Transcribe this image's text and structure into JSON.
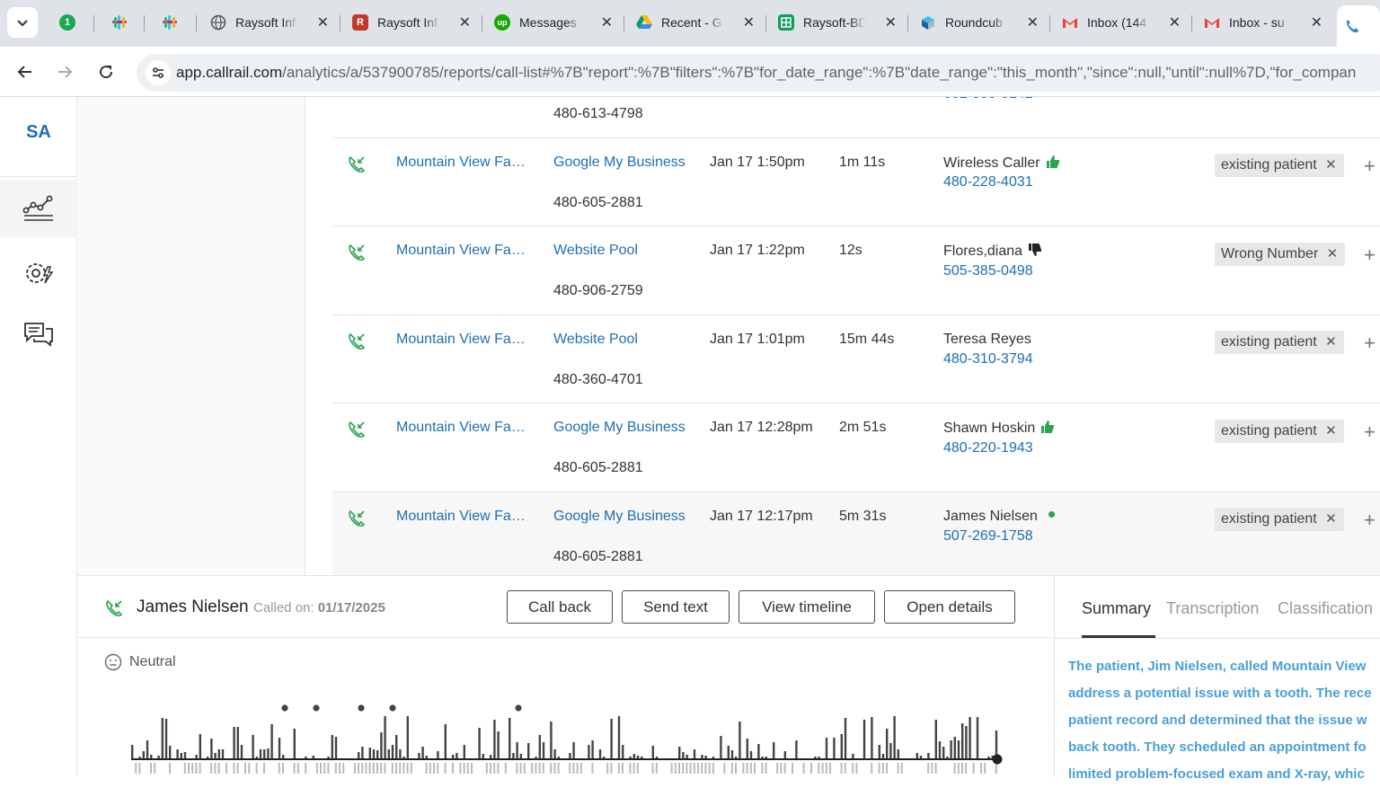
{
  "browser": {
    "tabs": [
      {
        "label": "",
        "favicon": "1password-icon",
        "closable": false
      },
      {
        "label": "",
        "favicon": "slack-icon",
        "closable": false
      },
      {
        "label": "",
        "favicon": "slack-icon",
        "closable": false
      },
      {
        "label": "Raysoft Inf",
        "favicon": "globe-icon",
        "closable": true
      },
      {
        "label": "Raysoft Inf",
        "favicon": "raysoft-icon",
        "closable": true
      },
      {
        "label": "Messages",
        "favicon": "upwork-icon",
        "closable": true
      },
      {
        "label": "Recent - G",
        "favicon": "google-drive-icon",
        "closable": true
      },
      {
        "label": "Raysoft-BD",
        "favicon": "google-sheets-icon",
        "closable": true
      },
      {
        "label": "Roundcub",
        "favicon": "roundcube-icon",
        "closable": true
      },
      {
        "label": "Inbox (144",
        "favicon": "gmail-icon",
        "closable": true
      },
      {
        "label": "Inbox - su",
        "favicon": "gmail-icon",
        "closable": true
      },
      {
        "label": "",
        "favicon": "callrail-icon",
        "closable": false
      }
    ],
    "url_host": "app.callrail.com",
    "url_path": "/analytics/a/537900785/reports/call-list#%7B\"report\":%7B\"filters\":%7B\"for_date_range\":%7B\"date_range\":\"this_month\",\"since\":null,\"until\":null%7D,\"for_compan"
  },
  "app": {
    "logo": "SA",
    "nav": [
      "analytics-icon",
      "settings-automation-icon",
      "conversations-icon"
    ]
  },
  "calls": {
    "partial_top_number": "480-613-4798",
    "rows": [
      {
        "company": "Mountain View Fa…",
        "source": "Google My Business",
        "tracking": "480-605-2881",
        "time": "Jan 17 1:50pm",
        "duration": "1m 11s",
        "caller": "Wireless Caller",
        "phone": "480-228-4031",
        "indicator": "thumbs-up",
        "tag": "existing patient"
      },
      {
        "company": "Mountain View Fa…",
        "source": "Website Pool",
        "tracking": "480-906-2759",
        "time": "Jan 17 1:22pm",
        "duration": "12s",
        "caller": "Flores,diana",
        "phone": "505-385-0498",
        "indicator": "thumbs-down",
        "tag": "Wrong Number"
      },
      {
        "company": "Mountain View Fa…",
        "source": "Website Pool",
        "tracking": "480-360-4701",
        "time": "Jan 17 1:01pm",
        "duration": "15m 44s",
        "caller": "Teresa Reyes",
        "phone": "480-310-3794",
        "indicator": "none",
        "tag": "existing patient"
      },
      {
        "company": "Mountain View Fa…",
        "source": "Google My Business",
        "tracking": "480-605-2881",
        "time": "Jan 17 12:28pm",
        "duration": "2m 51s",
        "caller": "Shawn Hoskin",
        "phone": "480-220-1943",
        "indicator": "thumbs-up",
        "tag": "existing patient"
      },
      {
        "company": "Mountain View Fa…",
        "source": "Google My Business",
        "tracking": "480-605-2881",
        "time": "Jan 17 12:17pm",
        "duration": "5m 31s",
        "caller": "James Nielsen",
        "phone": "507-269-1758",
        "indicator": "live-dot",
        "tag": "existing patient"
      }
    ]
  },
  "detail": {
    "caller_name": "James Nielsen",
    "called_on_label": "Called on:",
    "called_on_date": "01/17/2025",
    "buttons": {
      "call_back": "Call back",
      "send_text": "Send text",
      "view_timeline": "View timeline",
      "open_details": "Open details"
    },
    "sentiment": "Neutral",
    "tabs": {
      "summary": "Summary",
      "transcription": "Transcription",
      "classification": "Classification"
    },
    "summary_lines": [
      "The patient, Jim Nielsen, called Mountain View",
      "address a potential issue with a tooth. The rece",
      "patient record and determined that the issue w",
      "back tooth. They scheduled an appointment fo",
      "limited problem-focused exam and X-ray, whic"
    ]
  },
  "colors": {
    "link": "#1e6fb5",
    "accent_green": "#2aa44f",
    "summary_text": "#4a9fd8"
  }
}
